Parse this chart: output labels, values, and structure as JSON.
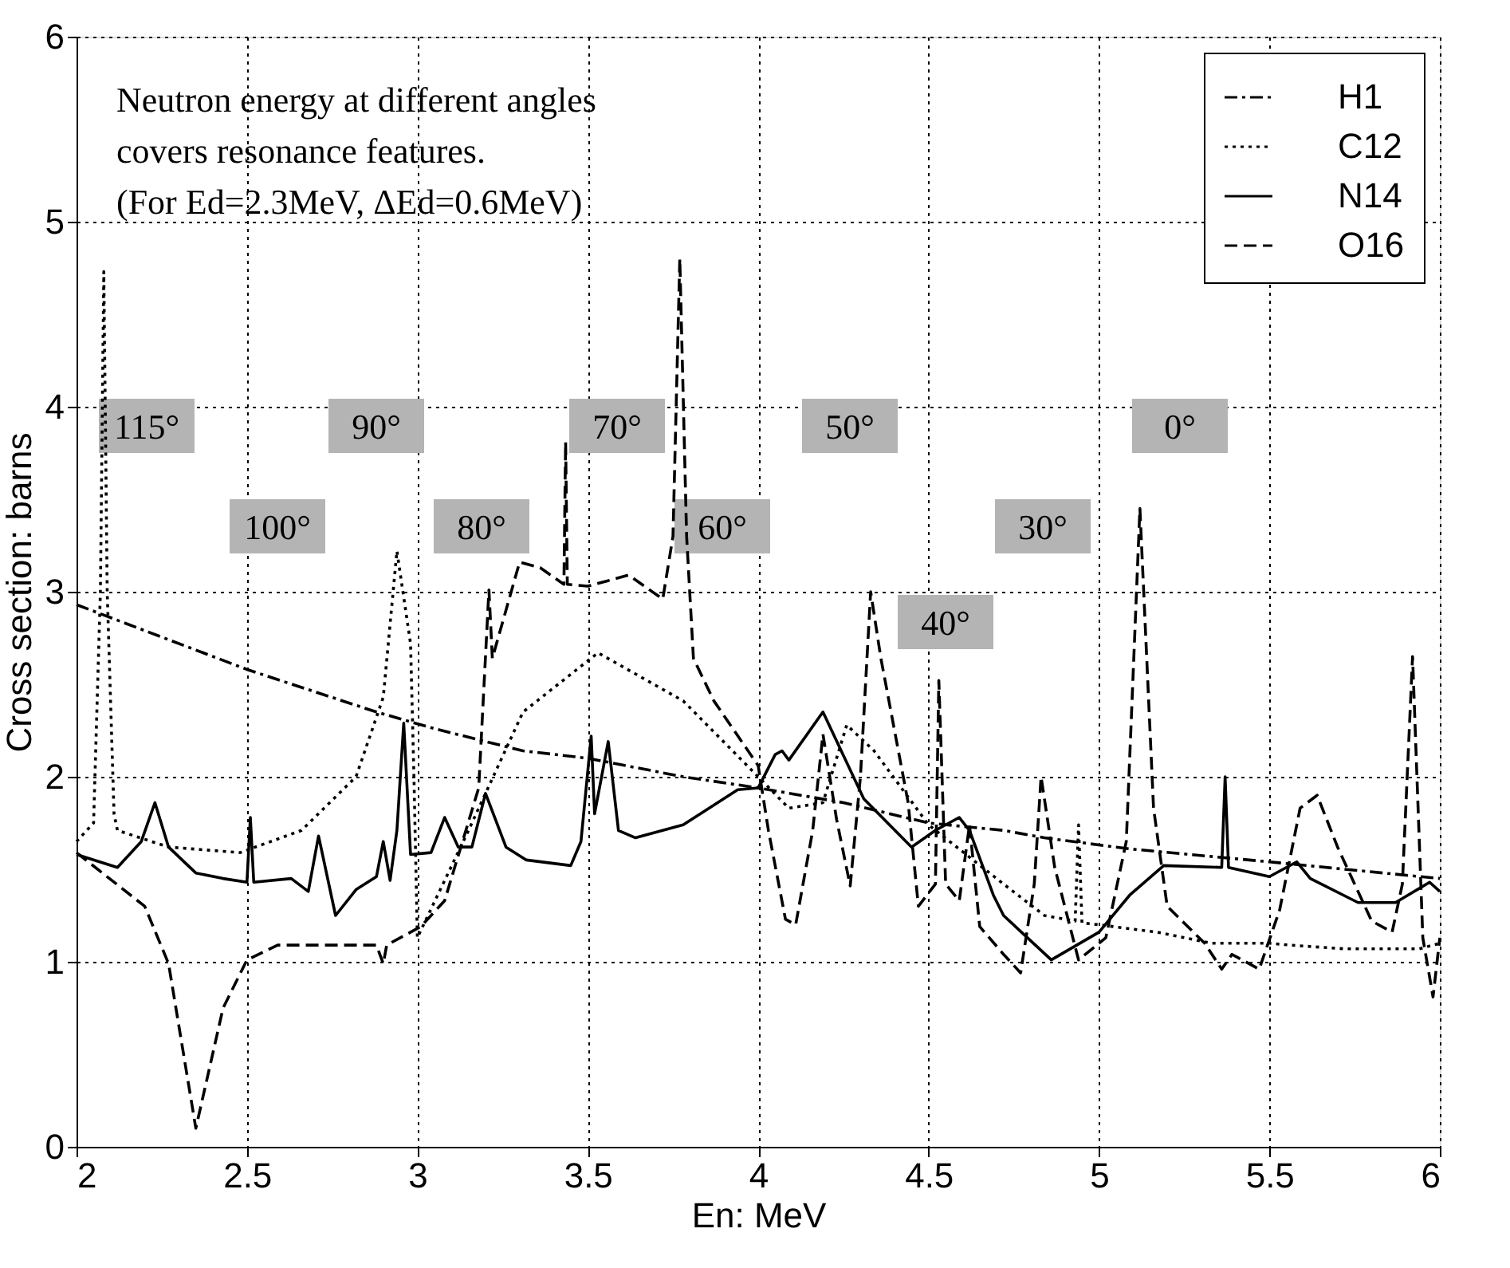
{
  "chart_data": {
    "type": "line",
    "xlabel": "En: MeV",
    "ylabel": "Cross section: barns",
    "xlim": [
      2,
      6
    ],
    "ylim": [
      0,
      6
    ],
    "xticks": [
      2,
      2.5,
      3,
      3.5,
      4,
      4.5,
      5,
      5.5,
      6
    ],
    "yticks": [
      0,
      1,
      2,
      3,
      4,
      5,
      6
    ],
    "grid": true,
    "legend": "top right",
    "marker": "none",
    "annotations": [
      "Neutron energy at different angles",
      "covers resonance features.",
      "(For  Ed=2.3MeV, ΔEd=0.6MeV)",
      "115°",
      "100°",
      "90°",
      "80°",
      "70°",
      "60°",
      "50°",
      "40°",
      "30°",
      "0°"
    ],
    "series": [
      {
        "name": "H1",
        "color": "#000000",
        "line_style": "dashdot",
        "x": [
          2,
          2.5,
          2.88,
          3.05,
          3.31,
          3.5,
          3.78,
          4.0,
          4.25,
          4.5,
          4.72,
          4.84,
          5.09,
          5.5,
          6
        ],
        "values": [
          2.93,
          2.58,
          2.35,
          2.26,
          2.14,
          2.1,
          2.0,
          1.94,
          1.86,
          1.75,
          1.71,
          1.67,
          1.61,
          1.54,
          1.45
        ]
      },
      {
        "name": "C12",
        "color": "#000000",
        "line_style": "dotted",
        "x": [
          2,
          2.05,
          2.07,
          2.08,
          2.09,
          2.11,
          2.12,
          2.27,
          2.48,
          2.66,
          2.82,
          2.9,
          2.94,
          2.98,
          2.99,
          3.0,
          3.15,
          3.31,
          3.53,
          3.78,
          4.0,
          4.09,
          4.19,
          4.26,
          4.34,
          4.5,
          4.72,
          4.84,
          4.93,
          4.94,
          4.95,
          5.0,
          5.17,
          5.33,
          5.5,
          5.56,
          5.72,
          5.94,
          6
        ],
        "values": [
          1.65,
          1.75,
          3.0,
          4.73,
          3.0,
          1.8,
          1.71,
          1.62,
          1.59,
          1.71,
          2.0,
          2.43,
          3.22,
          2.72,
          2.0,
          1.13,
          1.71,
          2.35,
          2.67,
          2.41,
          2.0,
          1.83,
          1.86,
          2.28,
          2.14,
          1.74,
          1.42,
          1.25,
          1.22,
          1.74,
          1.21,
          1.2,
          1.16,
          1.1,
          1.1,
          1.09,
          1.07,
          1.07,
          1.1
        ]
      },
      {
        "name": "N14",
        "color": "#000000",
        "line_style": "solid",
        "x": [
          2,
          2.12,
          2.19,
          2.23,
          2.27,
          2.35,
          2.43,
          2.5,
          2.51,
          2.52,
          2.63,
          2.68,
          2.71,
          2.76,
          2.82,
          2.88,
          2.9,
          2.92,
          2.94,
          2.96,
          2.98,
          3.04,
          3.08,
          3.12,
          3.16,
          3.2,
          3.26,
          3.32,
          3.45,
          3.48,
          3.51,
          3.52,
          3.56,
          3.59,
          3.64,
          3.78,
          3.94,
          4.0,
          4.05,
          4.07,
          4.09,
          4.19,
          4.31,
          4.45,
          4.52,
          4.59,
          4.62,
          4.69,
          4.72,
          4.86,
          5.0,
          5.09,
          5.19,
          5.36,
          5.37,
          5.38,
          5.5,
          5.58,
          5.62,
          5.76,
          5.87,
          5.97,
          6
        ],
        "values": [
          1.58,
          1.51,
          1.65,
          1.86,
          1.62,
          1.48,
          1.45,
          1.43,
          1.78,
          1.43,
          1.45,
          1.38,
          1.68,
          1.25,
          1.39,
          1.46,
          1.65,
          1.44,
          1.71,
          2.29,
          1.58,
          1.59,
          1.78,
          1.62,
          1.62,
          1.91,
          1.62,
          1.55,
          1.52,
          1.65,
          2.22,
          1.8,
          2.19,
          1.71,
          1.67,
          1.74,
          1.93,
          1.94,
          2.12,
          2.14,
          2.09,
          2.35,
          1.88,
          1.62,
          1.71,
          1.78,
          1.71,
          1.36,
          1.25,
          1.01,
          1.16,
          1.36,
          1.52,
          1.51,
          2.0,
          1.51,
          1.46,
          1.54,
          1.45,
          1.32,
          1.32,
          1.43,
          1.38
        ]
      },
      {
        "name": "O16",
        "color": "#000000",
        "line_style": "dashed",
        "x": [
          2,
          2.2,
          2.27,
          2.35,
          2.43,
          2.5,
          2.59,
          2.88,
          2.9,
          2.91,
          3.01,
          3.08,
          3.18,
          3.21,
          3.22,
          3.3,
          3.36,
          3.43,
          3.435,
          3.44,
          3.5,
          3.62,
          3.72,
          3.75,
          3.77,
          3.79,
          3.81,
          3.87,
          4.0,
          4.03,
          4.08,
          4.11,
          4.16,
          4.19,
          4.23,
          4.27,
          4.3,
          4.33,
          4.36,
          4.44,
          4.47,
          4.52,
          4.53,
          4.55,
          4.59,
          4.62,
          4.65,
          4.72,
          4.77,
          4.81,
          4.83,
          4.87,
          4.94,
          5.02,
          5.08,
          5.12,
          5.16,
          5.2,
          5.31,
          5.36,
          5.39,
          5.47,
          5.53,
          5.59,
          5.64,
          5.7,
          5.8,
          5.86,
          5.89,
          5.92,
          5.95,
          5.98,
          6
        ],
        "values": [
          1.59,
          1.3,
          0.99,
          0.1,
          0.75,
          1.01,
          1.09,
          1.09,
          0.99,
          1.09,
          1.19,
          1.33,
          1.94,
          3.01,
          2.64,
          3.16,
          3.13,
          3.04,
          3.81,
          3.04,
          3.03,
          3.09,
          2.96,
          3.3,
          4.8,
          3.3,
          2.64,
          2.41,
          2.06,
          1.71,
          1.23,
          1.2,
          1.71,
          2.23,
          1.77,
          1.41,
          2.0,
          3.0,
          2.64,
          1.86,
          1.3,
          1.42,
          2.52,
          1.42,
          1.33,
          1.74,
          1.19,
          1.04,
          0.94,
          1.42,
          2.0,
          1.51,
          1.01,
          1.13,
          1.65,
          3.45,
          1.83,
          1.3,
          1.1,
          0.96,
          1.04,
          0.96,
          1.28,
          1.83,
          1.9,
          1.62,
          1.22,
          1.16,
          1.42,
          2.65,
          1.13,
          0.81,
          1.13
        ]
      }
    ]
  }
}
